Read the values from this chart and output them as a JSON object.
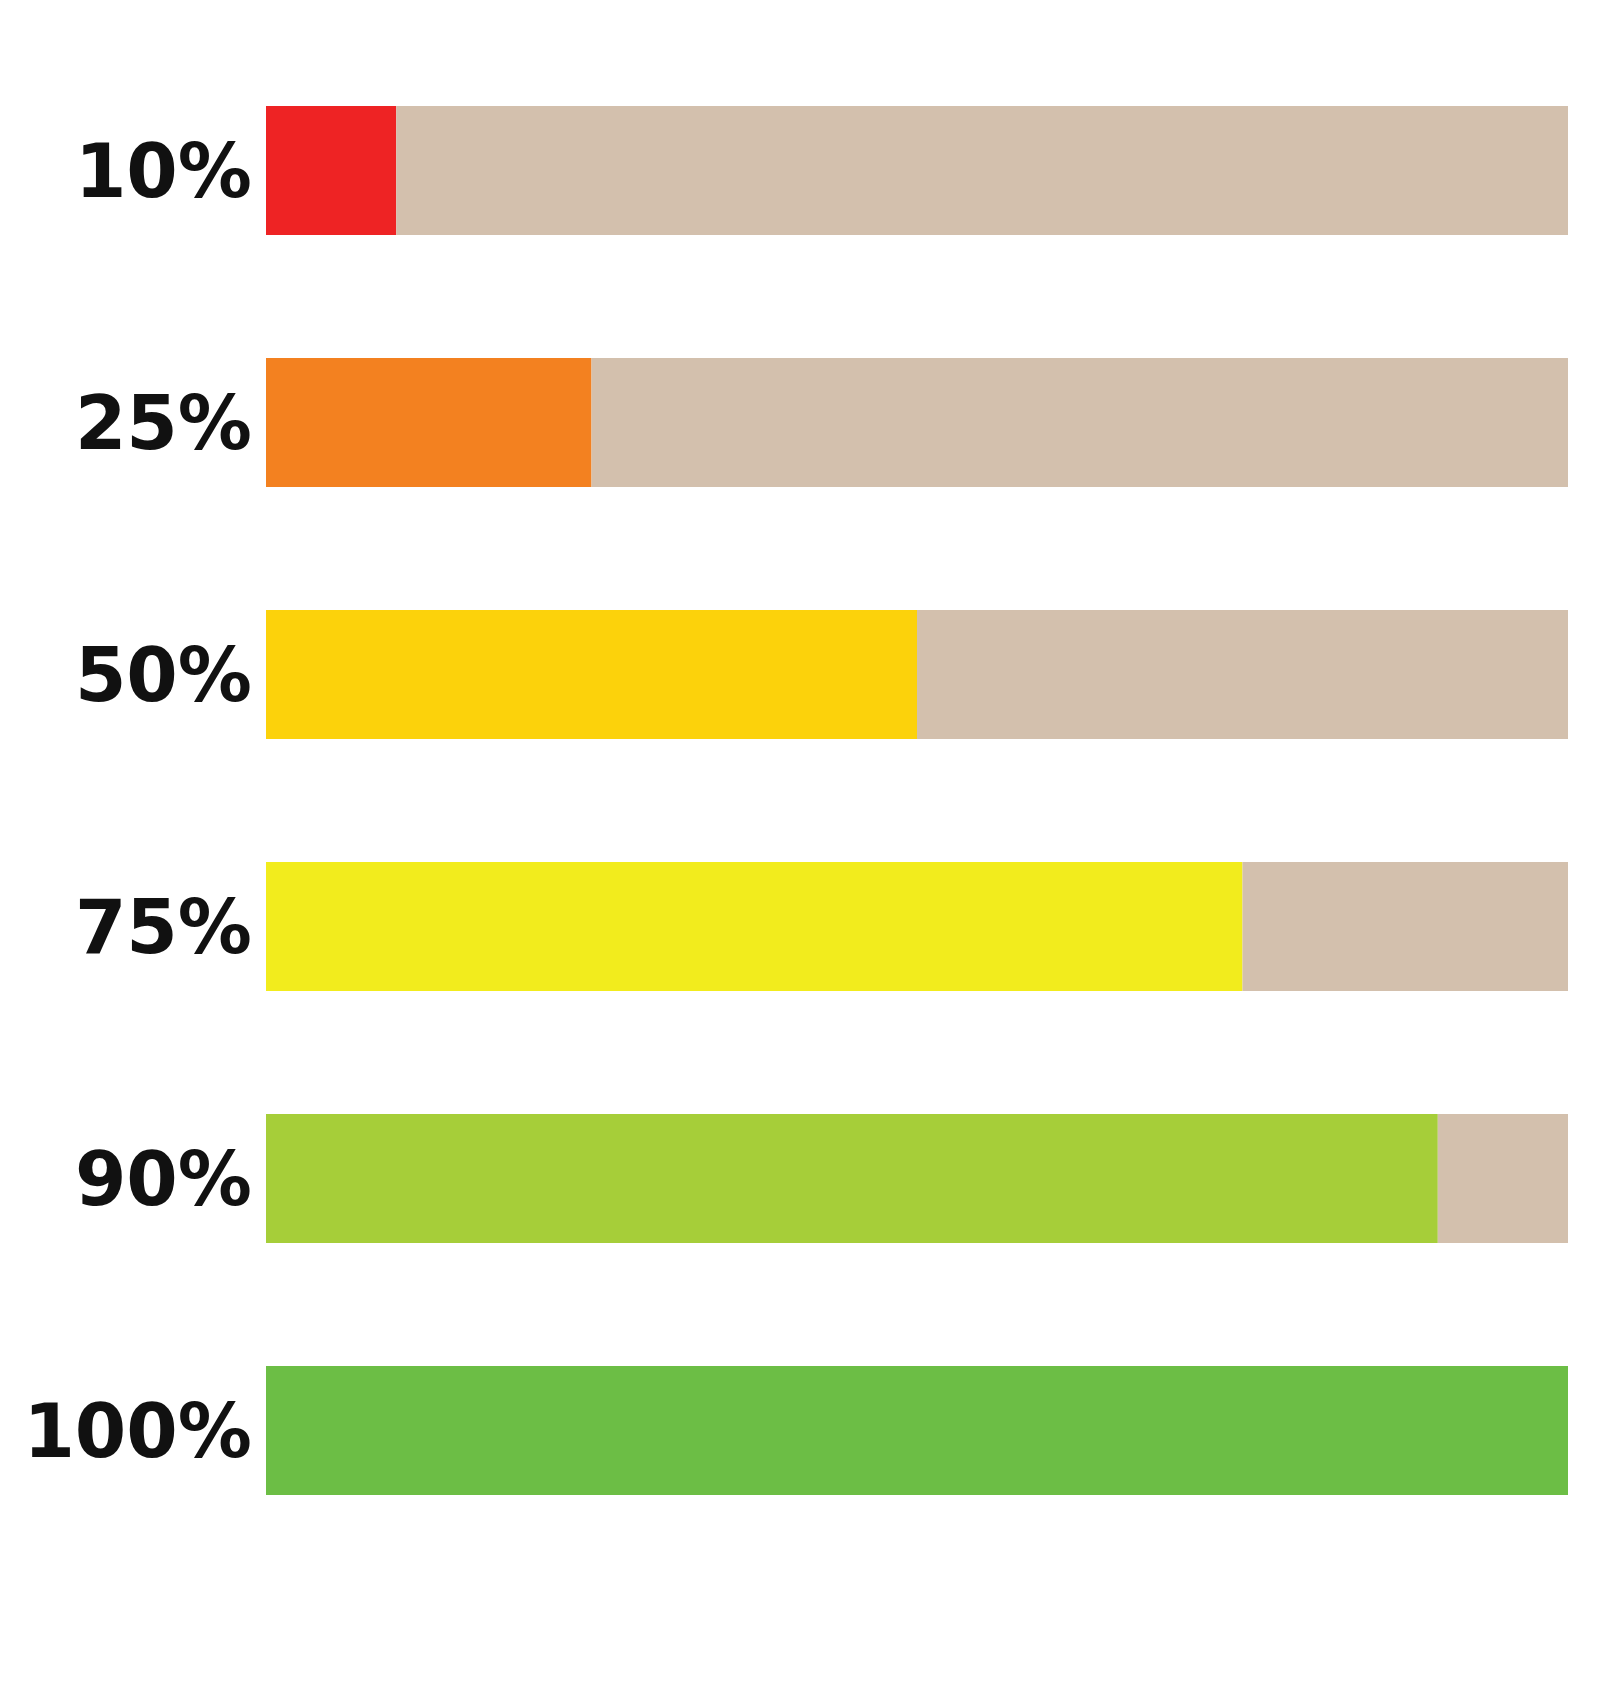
{
  "chart_data": {
    "type": "bar",
    "orientation": "horizontal",
    "stacked": true,
    "categories": [
      null,
      null,
      null,
      null,
      null,
      null
    ],
    "xlim": [
      0,
      100
    ],
    "legend": false,
    "series": [
      {
        "colors": [
          "#ee2324",
          "#f38120",
          "#fcd20b",
          "#f2ec1d",
          "#a6ce39",
          "#6cbe45"
        ],
        "values": [
          10,
          25,
          50,
          75,
          90,
          100
        ],
        "value_labels": [
          "10%",
          "25%",
          "50%",
          "75%",
          "90%",
          "100%"
        ]
      },
      {
        "color": "#d3c0ad",
        "values": [
          90,
          75,
          50,
          25,
          10,
          0
        ]
      }
    ]
  }
}
